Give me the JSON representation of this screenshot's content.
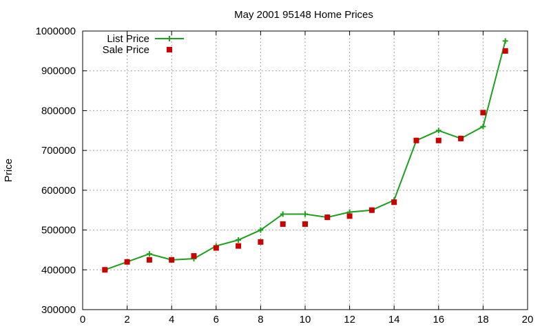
{
  "chart_data": {
    "type": "line",
    "title": "May 2001 95148 Home Prices",
    "xlabel": "",
    "ylabel": "Price",
    "xlim": [
      0,
      20
    ],
    "ylim": [
      300000,
      1000000
    ],
    "x_ticks": [
      0,
      2,
      4,
      6,
      8,
      10,
      12,
      14,
      16,
      18,
      20
    ],
    "y_ticks": [
      300000,
      400000,
      500000,
      600000,
      700000,
      800000,
      900000,
      1000000
    ],
    "grid": true,
    "legend": "top-left",
    "series": [
      {
        "name": "List Price",
        "style": "line-with-plus-markers",
        "color": "#1aa01a",
        "x": [
          1,
          2,
          3,
          4,
          5,
          6,
          7,
          8,
          9,
          10,
          11,
          12,
          13,
          14,
          15,
          16,
          17,
          18,
          19
        ],
        "values": [
          400000,
          420000,
          440000,
          425000,
          428000,
          460000,
          475000,
          500000,
          540000,
          540000,
          532000,
          545000,
          550000,
          575000,
          725000,
          750000,
          730000,
          760000,
          975000
        ]
      },
      {
        "name": "Sale Price",
        "style": "square-markers",
        "color": "#cc0000",
        "x": [
          1,
          2,
          3,
          4,
          5,
          6,
          7,
          8,
          9,
          10,
          11,
          12,
          13,
          14,
          15,
          16,
          17,
          18,
          19
        ],
        "values": [
          400000,
          420000,
          425000,
          425000,
          435000,
          455000,
          460000,
          470000,
          515000,
          515000,
          532000,
          535000,
          550000,
          570000,
          725000,
          725000,
          730000,
          795000,
          950000
        ]
      }
    ]
  }
}
